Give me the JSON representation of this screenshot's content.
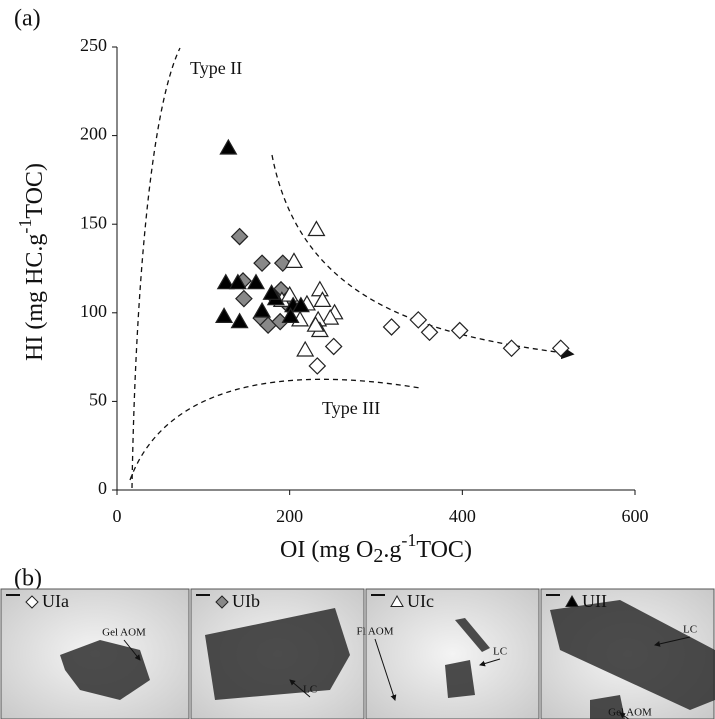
{
  "chart_data": {
    "type": "scatter",
    "panel_label": "(a)",
    "x_label_parts": [
      "OI (mg O",
      "2",
      ".g",
      "-1",
      "TOC)"
    ],
    "y_label_parts": [
      "HI (mg HC.g",
      "-1",
      "TOC)"
    ],
    "annotations": [
      "Type II",
      "Type III"
    ],
    "xlim": [
      0,
      600
    ],
    "xticks": [
      0,
      200,
      400,
      600
    ],
    "ylim": [
      0,
      250
    ],
    "yticks": [
      0,
      50,
      100,
      150,
      200,
      250
    ],
    "grid": false,
    "series": [
      {
        "name": "UIa",
        "color": "#ffffff",
        "marker": "diamond",
        "x": [
          318,
          349,
          362,
          397,
          457,
          514,
          251,
          232
        ],
        "y": [
          92,
          96,
          89,
          90,
          80,
          80,
          81,
          70
        ]
      },
      {
        "name": "UIb",
        "color": "#888888",
        "marker": "diamond",
        "x": [
          142,
          146,
          147,
          168,
          190,
          167,
          175,
          189,
          192,
          197,
          182
        ],
        "y": [
          143,
          118,
          108,
          128,
          113,
          97,
          93,
          95,
          128,
          105,
          109
        ]
      },
      {
        "name": "UIc",
        "color": "#ffffff",
        "marker": "triangle",
        "x": [
          231,
          205,
          235,
          220,
          238,
          252,
          247,
          233,
          218,
          235,
          191,
          200,
          230,
          212
        ],
        "y": [
          147,
          129,
          113,
          105,
          107,
          100,
          97,
          96,
          79,
          90,
          107,
          110,
          93,
          96
        ]
      },
      {
        "name": "UII",
        "color": "#000000",
        "marker": "triangle",
        "x": [
          129,
          126,
          140,
          161,
          124,
          142,
          184,
          179,
          204,
          213,
          201,
          168
        ],
        "y": [
          193,
          117,
          117,
          117,
          98,
          95,
          108,
          111,
          104,
          104,
          98,
          101
        ]
      }
    ]
  },
  "photos": {
    "panel_label": "(b)",
    "annotations": [
      [
        "Gel AOM"
      ],
      [
        "LC"
      ],
      [
        "Fl AOM",
        "LC"
      ],
      [
        "LC",
        "Gel AOM"
      ]
    ]
  }
}
